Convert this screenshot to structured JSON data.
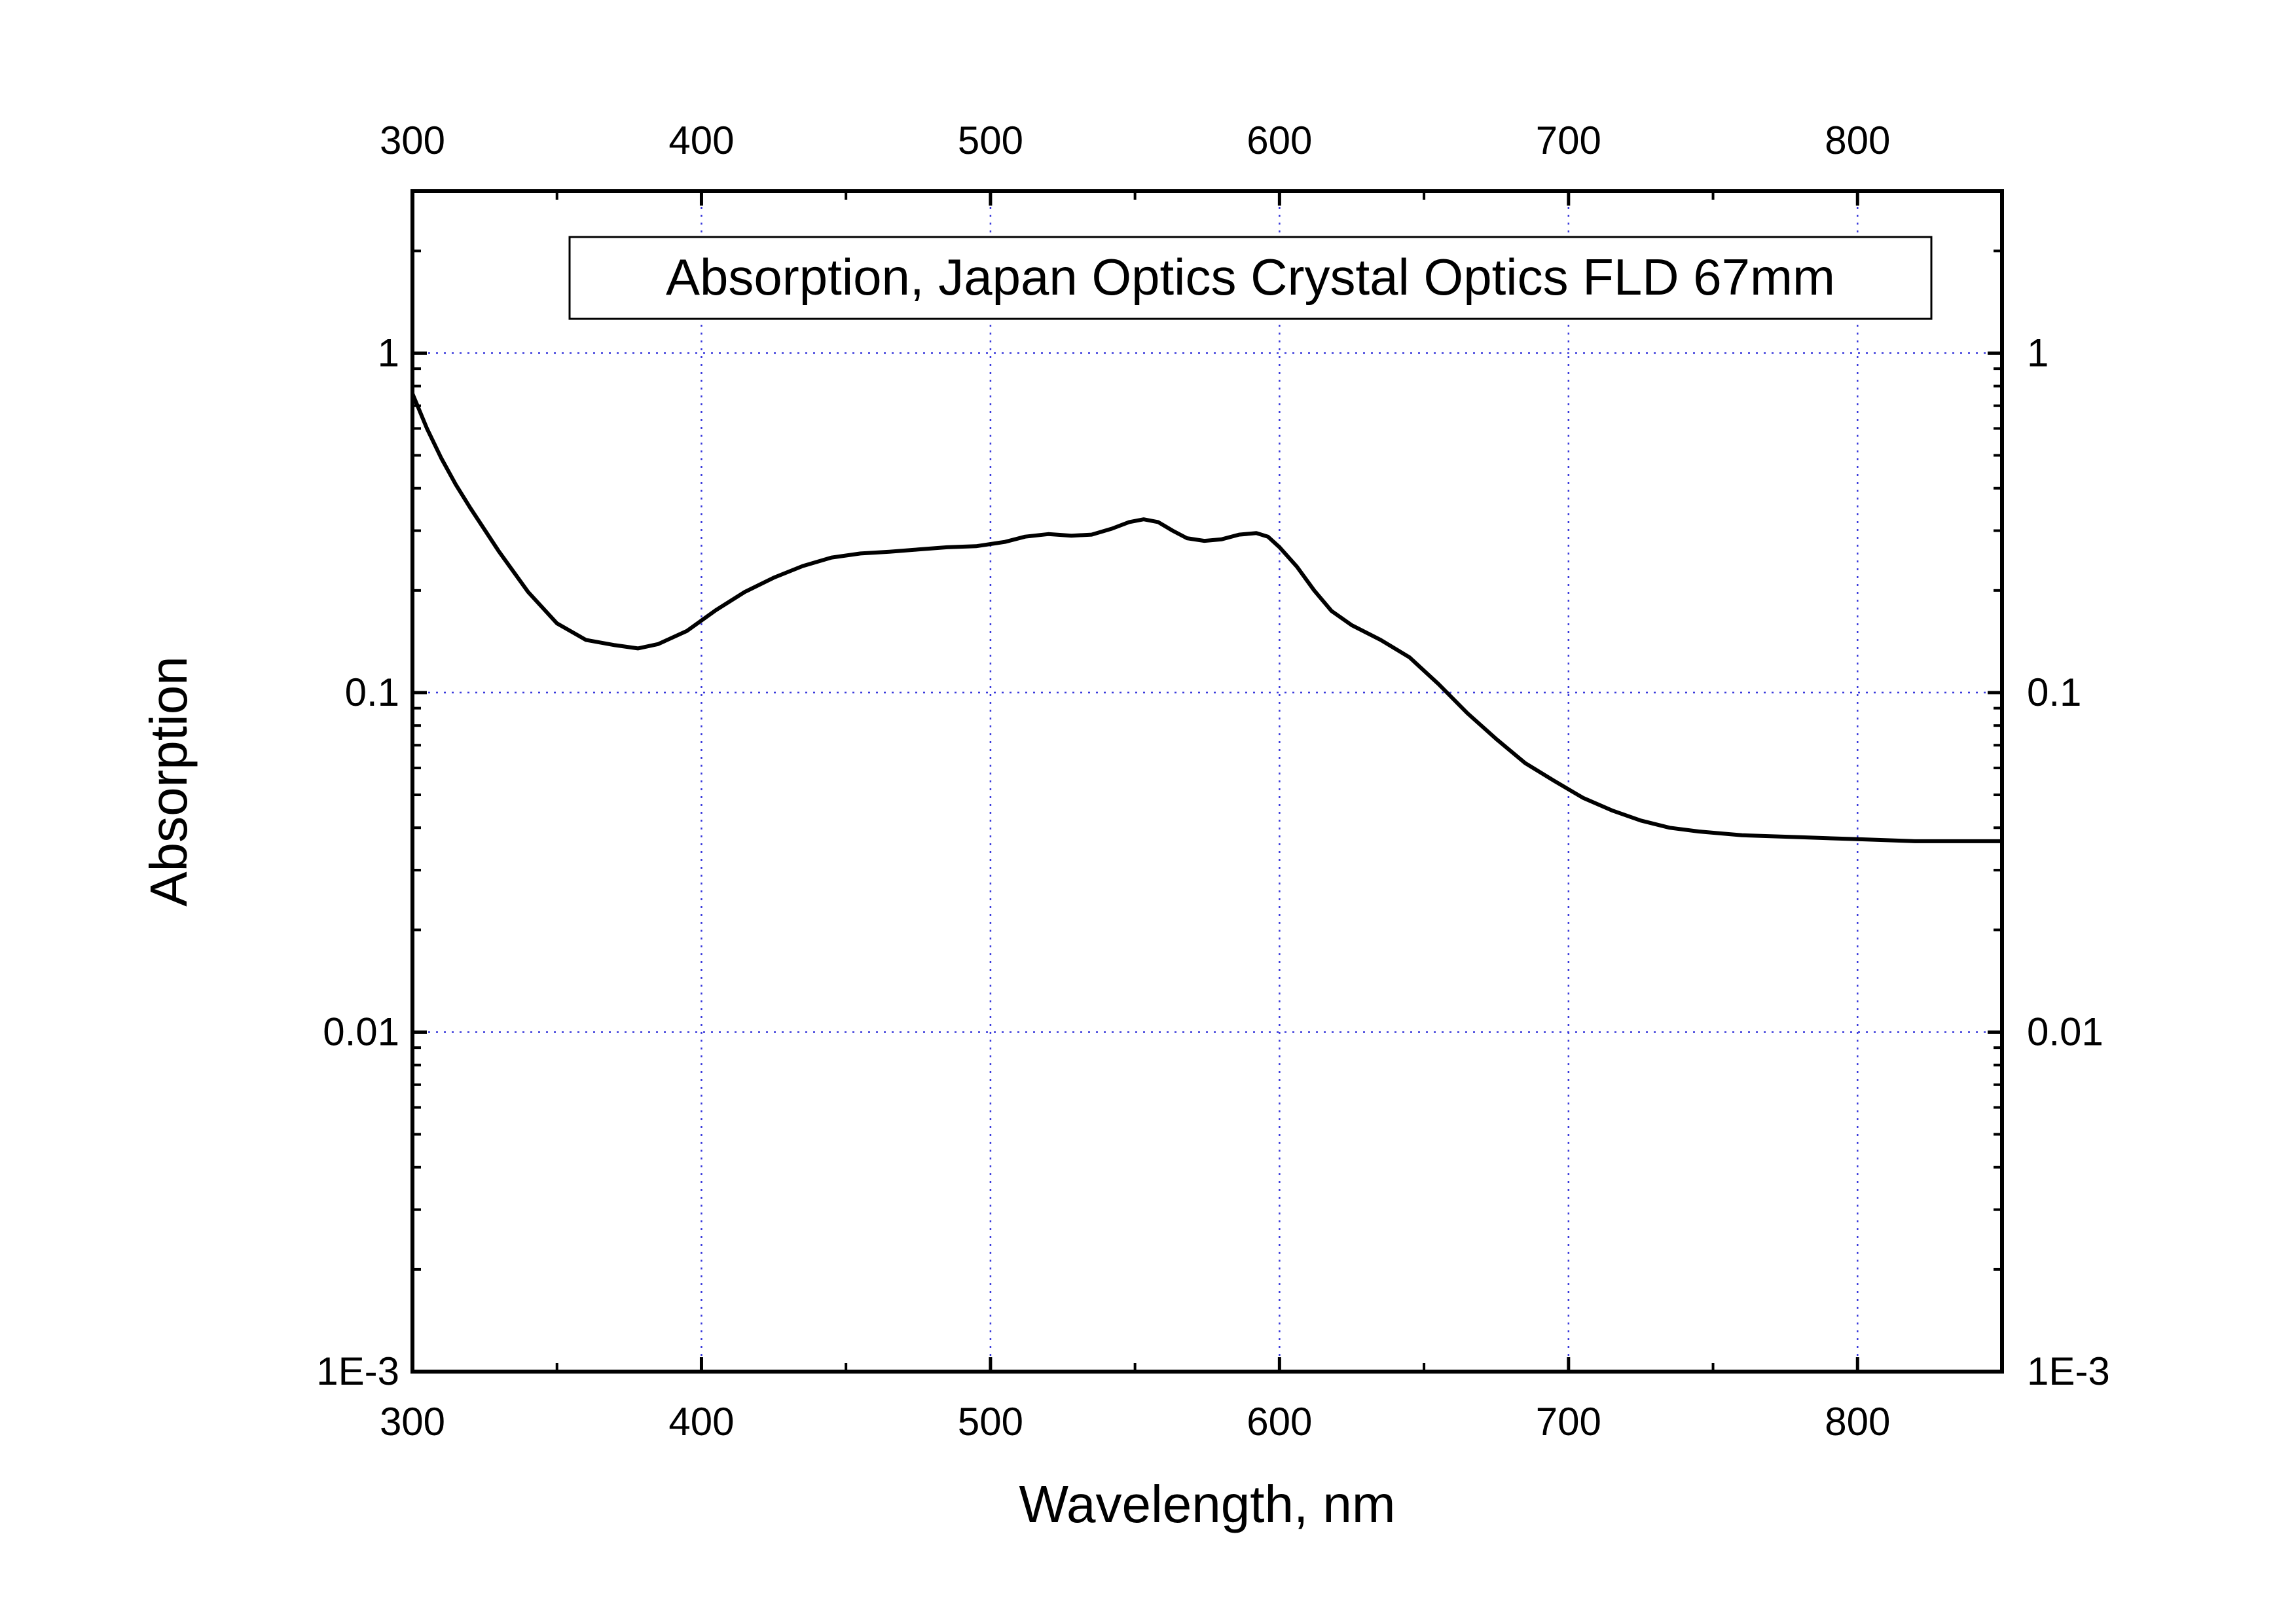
{
  "chart_data": {
    "type": "line",
    "title": "",
    "legend": {
      "text": "Absorption, Japan Optics Crystal Optics FLD 67mm",
      "position": "top-right"
    },
    "xlabel": "Wavelength, nm",
    "ylabel": "Absorption",
    "xlim": [
      300,
      850
    ],
    "ylim": [
      0.001,
      3
    ],
    "yscale": "log",
    "grid": true,
    "mirror_axes": true,
    "x_ticks": [
      {
        "value": 300,
        "label": "300"
      },
      {
        "value": 400,
        "label": "400"
      },
      {
        "value": 500,
        "label": "500"
      },
      {
        "value": 600,
        "label": "600"
      },
      {
        "value": 700,
        "label": "700"
      },
      {
        "value": 800,
        "label": "800"
      }
    ],
    "y_ticks": [
      {
        "value": 0.001,
        "label": "1E-3"
      },
      {
        "value": 0.01,
        "label": "0.01"
      },
      {
        "value": 0.1,
        "label": "0.1"
      },
      {
        "value": 1,
        "label": "1"
      }
    ],
    "series": [
      {
        "color": "#000000",
        "x": [
          300,
          305,
          310,
          315,
          320,
          330,
          340,
          350,
          360,
          370,
          378,
          385,
          395,
          405,
          415,
          425,
          435,
          445,
          455,
          465,
          475,
          485,
          495,
          505,
          512,
          520,
          528,
          535,
          542,
          548,
          553,
          558,
          563,
          568,
          574,
          580,
          586,
          592,
          596,
          600,
          606,
          612,
          618,
          625,
          635,
          645,
          655,
          665,
          675,
          685,
          695,
          705,
          715,
          725,
          735,
          745,
          760,
          780,
          800,
          820,
          840,
          850
        ],
        "y": [
          0.76,
          0.6,
          0.49,
          0.41,
          0.35,
          0.26,
          0.198,
          0.16,
          0.143,
          0.138,
          0.135,
          0.139,
          0.152,
          0.175,
          0.198,
          0.218,
          0.236,
          0.25,
          0.257,
          0.26,
          0.264,
          0.268,
          0.27,
          0.278,
          0.288,
          0.293,
          0.29,
          0.292,
          0.304,
          0.318,
          0.324,
          0.318,
          0.3,
          0.285,
          0.28,
          0.283,
          0.292,
          0.295,
          0.288,
          0.268,
          0.235,
          0.2,
          0.174,
          0.158,
          0.143,
          0.127,
          0.106,
          0.087,
          0.073,
          0.062,
          0.055,
          0.049,
          0.045,
          0.042,
          0.04,
          0.039,
          0.038,
          0.0375,
          0.037,
          0.0365,
          0.0365,
          0.0365
        ]
      }
    ]
  }
}
